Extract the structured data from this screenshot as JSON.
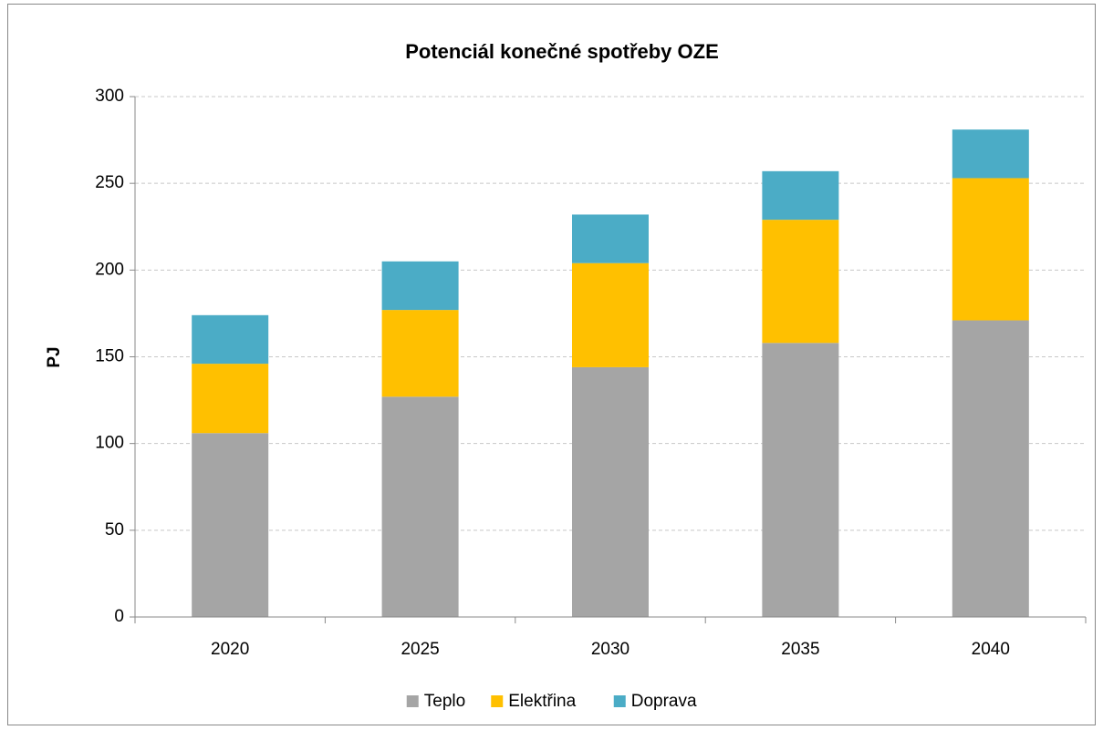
{
  "chart_data": {
    "type": "bar",
    "stacked": true,
    "title": "Potenciál konečné spotřeby OZE",
    "y_label": "PJ",
    "categories": [
      "2020",
      "2025",
      "2030",
      "2035",
      "2040"
    ],
    "series": [
      {
        "name": "Teplo",
        "color": "#a5a5a5",
        "values": [
          106,
          127,
          144,
          158,
          171
        ]
      },
      {
        "name": "Elektřina",
        "color": "#ffc000",
        "values": [
          40,
          50,
          60,
          71,
          82
        ]
      },
      {
        "name": "Doprava",
        "color": "#4bacc6",
        "values": [
          28,
          28,
          28,
          28,
          28
        ]
      }
    ],
    "ylim": [
      0,
      300
    ],
    "yticks": [
      0,
      50,
      100,
      150,
      200,
      250,
      300
    ],
    "grid": true,
    "legend": "bottom"
  }
}
